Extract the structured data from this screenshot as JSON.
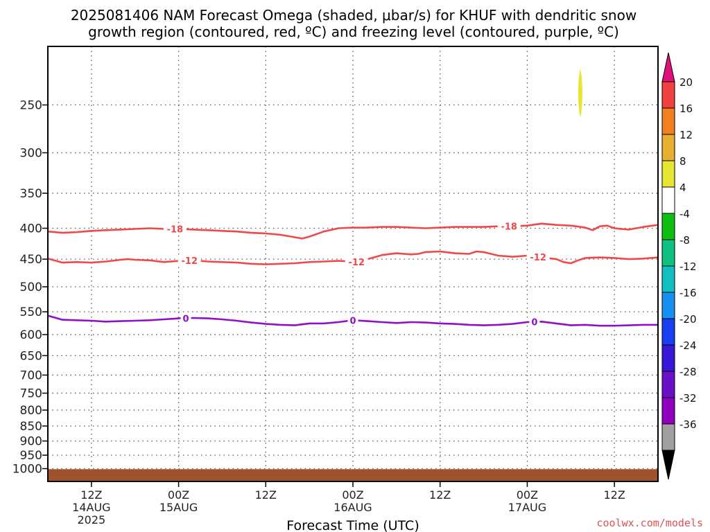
{
  "title_line1": "2025081406 NAM Forecast Omega (shaded, μbar/s) for KHUF with dendritic snow",
  "title_line2": "growth region (contoured, red, ºC) and freezing level (contoured, purple, ºC)",
  "credit": "coolwx.com/models",
  "chart_data": {
    "type": "time-height cross section",
    "xlabel": "Forecast Time (UTC)",
    "ylabel": "",
    "x_unit": "hours from 2025-08-14 06Z",
    "xlim": [
      0,
      84
    ],
    "ylim_pressure_hPa": [
      1050,
      200
    ],
    "y_scale": "log-pressure, inverted",
    "grid": true,
    "y_ticks": [
      {
        "v": 250,
        "label": "250"
      },
      {
        "v": 300,
        "label": "300"
      },
      {
        "v": 350,
        "label": "350"
      },
      {
        "v": 400,
        "label": "400"
      },
      {
        "v": 450,
        "label": "450"
      },
      {
        "v": 500,
        "label": "500"
      },
      {
        "v": 550,
        "label": "550"
      },
      {
        "v": 600,
        "label": "600"
      },
      {
        "v": 650,
        "label": "650"
      },
      {
        "v": 700,
        "label": "700"
      },
      {
        "v": 750,
        "label": "750"
      },
      {
        "v": 800,
        "label": "800"
      },
      {
        "v": 850,
        "label": "850"
      },
      {
        "v": 900,
        "label": "900"
      },
      {
        "v": 950,
        "label": "950"
      },
      {
        "v": 1000,
        "label": "1000"
      }
    ],
    "x_ticks": [
      {
        "t": 6,
        "lines": [
          "12Z",
          "14AUG",
          "2025"
        ]
      },
      {
        "t": 18,
        "lines": [
          "00Z",
          "15AUG"
        ]
      },
      {
        "t": 30,
        "lines": [
          "12Z"
        ]
      },
      {
        "t": 42,
        "lines": [
          "00Z",
          "16AUG"
        ]
      },
      {
        "t": 54,
        "lines": [
          "12Z"
        ]
      },
      {
        "t": 66,
        "lines": [
          "00Z",
          "17AUG"
        ]
      },
      {
        "t": 78,
        "lines": [
          "12Z"
        ]
      }
    ],
    "contours": [
      {
        "name": "-18",
        "color": "#f04848",
        "label": "-18",
        "label_t": [
          17.5,
          63.5
        ],
        "points": [
          [
            0,
            405
          ],
          [
            2,
            407
          ],
          [
            4,
            406
          ],
          [
            6,
            404
          ],
          [
            8,
            403
          ],
          [
            10,
            402
          ],
          [
            12,
            401
          ],
          [
            14,
            400
          ],
          [
            16,
            401
          ],
          [
            18,
            401
          ],
          [
            20,
            402
          ],
          [
            22,
            403
          ],
          [
            24,
            404
          ],
          [
            26,
            405
          ],
          [
            28,
            407
          ],
          [
            30,
            408
          ],
          [
            32,
            410
          ],
          [
            34,
            414
          ],
          [
            35,
            416
          ],
          [
            36,
            413
          ],
          [
            38,
            405
          ],
          [
            40,
            400
          ],
          [
            42,
            399
          ],
          [
            44,
            399
          ],
          [
            46,
            398
          ],
          [
            48,
            398
          ],
          [
            50,
            399
          ],
          [
            52,
            400
          ],
          [
            54,
            399
          ],
          [
            56,
            398
          ],
          [
            58,
            398
          ],
          [
            60,
            398
          ],
          [
            62,
            397
          ],
          [
            64,
            397
          ],
          [
            66,
            396
          ],
          [
            68,
            393
          ],
          [
            70,
            395
          ],
          [
            72,
            396
          ],
          [
            74,
            399
          ],
          [
            75,
            403
          ],
          [
            76,
            397
          ],
          [
            77,
            396
          ],
          [
            78,
            400
          ],
          [
            80,
            402
          ],
          [
            82,
            398
          ],
          [
            84,
            395
          ]
        ]
      },
      {
        "name": "-12",
        "color": "#f04848",
        "label": "-12",
        "label_t": [
          19.5,
          42.5,
          67.5
        ],
        "points": [
          [
            0,
            449
          ],
          [
            2,
            456
          ],
          [
            4,
            455
          ],
          [
            6,
            456
          ],
          [
            8,
            454
          ],
          [
            10,
            451
          ],
          [
            11,
            450
          ],
          [
            12,
            451
          ],
          [
            14,
            452
          ],
          [
            16,
            455
          ],
          [
            18,
            453
          ],
          [
            20,
            452
          ],
          [
            22,
            454
          ],
          [
            24,
            455
          ],
          [
            26,
            456
          ],
          [
            28,
            458
          ],
          [
            30,
            459
          ],
          [
            32,
            458
          ],
          [
            34,
            457
          ],
          [
            36,
            455
          ],
          [
            38,
            454
          ],
          [
            40,
            453
          ],
          [
            42,
            454
          ],
          [
            43,
            455
          ],
          [
            44,
            450
          ],
          [
            46,
            443
          ],
          [
            48,
            440
          ],
          [
            50,
            442
          ],
          [
            51,
            441
          ],
          [
            52,
            438
          ],
          [
            54,
            437
          ],
          [
            56,
            440
          ],
          [
            58,
            441
          ],
          [
            59,
            437
          ],
          [
            60,
            438
          ],
          [
            62,
            444
          ],
          [
            64,
            446
          ],
          [
            66,
            444
          ],
          [
            68,
            447
          ],
          [
            70,
            450
          ],
          [
            71,
            455
          ],
          [
            72,
            457
          ],
          [
            73,
            452
          ],
          [
            74,
            448
          ],
          [
            76,
            447
          ],
          [
            78,
            448
          ],
          [
            80,
            450
          ],
          [
            82,
            449
          ],
          [
            84,
            447
          ]
        ]
      },
      {
        "name": "0",
        "color": "#9010c8",
        "label": "0",
        "label_t": [
          19,
          42,
          67
        ],
        "points": [
          [
            0,
            558
          ],
          [
            2,
            567
          ],
          [
            4,
            568
          ],
          [
            6,
            569
          ],
          [
            8,
            571
          ],
          [
            10,
            570
          ],
          [
            12,
            569
          ],
          [
            14,
            568
          ],
          [
            16,
            566
          ],
          [
            18,
            564
          ],
          [
            20,
            563
          ],
          [
            22,
            564
          ],
          [
            24,
            566
          ],
          [
            26,
            569
          ],
          [
            28,
            573
          ],
          [
            30,
            576
          ],
          [
            32,
            578
          ],
          [
            34,
            579
          ],
          [
            36,
            575
          ],
          [
            38,
            575
          ],
          [
            40,
            572
          ],
          [
            42,
            568
          ],
          [
            44,
            570
          ],
          [
            46,
            572
          ],
          [
            48,
            574
          ],
          [
            50,
            572
          ],
          [
            52,
            573
          ],
          [
            54,
            575
          ],
          [
            56,
            576
          ],
          [
            58,
            578
          ],
          [
            60,
            579
          ],
          [
            62,
            578
          ],
          [
            64,
            576
          ],
          [
            66,
            572
          ],
          [
            68,
            571
          ],
          [
            70,
            575
          ],
          [
            72,
            579
          ],
          [
            74,
            578
          ],
          [
            76,
            580
          ],
          [
            78,
            580
          ],
          [
            80,
            579
          ],
          [
            82,
            578
          ],
          [
            84,
            578
          ]
        ]
      }
    ],
    "omega_shading": [
      {
        "t": 73.3,
        "p_top": 218,
        "p_bottom": 262,
        "value_range": [
          4,
          8
        ],
        "color": "#e6e632"
      }
    ],
    "ground": {
      "color": "#a0522d",
      "p_top": 1002
    },
    "colorbar": {
      "unit": "μbar/s",
      "bins": [
        {
          "color": "#a0a0a0",
          "label": "-36"
        },
        {
          "color": "#9000c0",
          "label": "-32"
        },
        {
          "color": "#6810c8",
          "label": "-28"
        },
        {
          "color": "#3818d8",
          "label": "-24"
        },
        {
          "color": "#1840f0",
          "label": "-20"
        },
        {
          "color": "#1890f0",
          "label": "-16"
        },
        {
          "color": "#10c0c0",
          "label": "-12"
        },
        {
          "color": "#10c080",
          "label": "-8"
        },
        {
          "color": "#10c010",
          "label": "-4"
        },
        {
          "color": "#ffffff",
          "label": "4"
        },
        {
          "color": "#e6e632",
          "label": "8"
        },
        {
          "color": "#e8b030",
          "label": "12"
        },
        {
          "color": "#f08020",
          "label": "16"
        },
        {
          "color": "#f04040",
          "label": "20"
        }
      ],
      "low_end_color": "#000000",
      "high_end_color": "#e0107a"
    }
  }
}
